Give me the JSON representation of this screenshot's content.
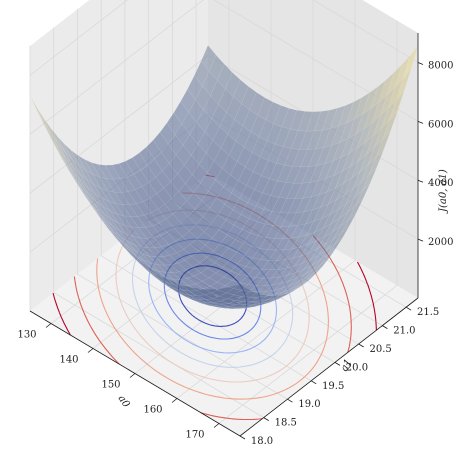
{
  "chart_data": {
    "type": "surface3d",
    "title": "",
    "xlabel": "a0",
    "ylabel": "a1",
    "zlabel": "J(a0, a1)",
    "xlim": [
      125,
      175
    ],
    "ylim": [
      18.0,
      21.75
    ],
    "zlim": [
      0,
      9000
    ],
    "xticks": [
      "130",
      "140",
      "150",
      "160",
      "170"
    ],
    "yticks": [
      "18.0",
      "18.5",
      "19.0",
      "19.5",
      "20.0",
      "20.5",
      "21.0",
      "21.5"
    ],
    "zticks": [
      "2000",
      "4000",
      "6000",
      "8000"
    ],
    "surface": {
      "function": "quadratic cost bowl",
      "minimum": {
        "a0": 147,
        "a1": 19.9,
        "J": 900
      },
      "colormap": "cividis-like",
      "alpha": 0.55
    },
    "contour_colormap": "coolwarm",
    "contour_levels": [
      1100,
      1300,
      1600,
      2000,
      2500,
      3200,
      4200,
      5500
    ]
  }
}
